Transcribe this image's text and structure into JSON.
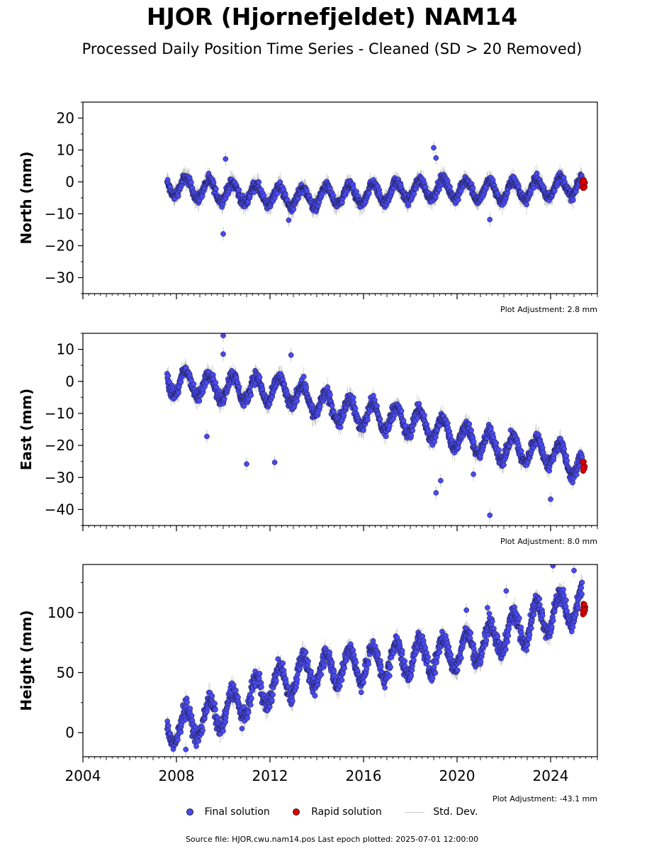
{
  "title": "HJOR (Hjornefjeldet) NAM14",
  "subtitle": "Processed Daily Position Time Series - Cleaned (SD > 20 Removed)",
  "legend": {
    "final_label": "Final solution",
    "rapid_label": "Rapid solution",
    "std_label": "Std. Dev.",
    "final_color": "#4a4af0",
    "rapid_color": "#e00000",
    "std_color": "#c8c8c8"
  },
  "footer": "Source file: HJOR.cwu.nam14.pos  Last epoch plotted: 2025-07-01 12:00:00",
  "chart_data": [
    {
      "type": "scatter",
      "ylabel": "North (mm)",
      "xlim": [
        2004,
        2026
      ],
      "ylim": [
        -35,
        25
      ],
      "yticks": [
        "20",
        "10",
        "0",
        "−10",
        "−20",
        "−30"
      ],
      "ytick_values": [
        20,
        10,
        0,
        -10,
        -20,
        -30
      ],
      "plot_adjustment": "Plot Adjustment: 2.8 mm",
      "data_start": 2007.6,
      "data_end": 2025.5,
      "series": [
        {
          "name": "Final solution",
          "trend": [
            [
              2007.6,
              -1
            ],
            [
              2010,
              -3
            ],
            [
              2013,
              -5
            ],
            [
              2016,
              -4
            ],
            [
              2019,
              -2
            ],
            [
              2022,
              -3
            ],
            [
              2025.3,
              -1
            ]
          ],
          "seasonal_amplitude": 3
        },
        {
          "name": "Rapid solution",
          "x_range": [
            2025.35,
            2025.5
          ],
          "y_range": [
            -2,
            1
          ]
        }
      ],
      "outliers": [
        [
          2010.0,
          -16.3
        ],
        [
          2019.0,
          10.7
        ],
        [
          2019.1,
          7.5
        ],
        [
          2010.1,
          7.2
        ],
        [
          2021.4,
          -11.8
        ],
        [
          2012.8,
          -12
        ]
      ]
    },
    {
      "type": "scatter",
      "ylabel": "East (mm)",
      "xlim": [
        2004,
        2026
      ],
      "ylim": [
        -45,
        15
      ],
      "yticks": [
        "10",
        "0",
        "−10",
        "−20",
        "−30",
        "−40"
      ],
      "ytick_values": [
        10,
        0,
        -10,
        -20,
        -30,
        -40
      ],
      "plot_adjustment": "Plot Adjustment: 8.0 mm",
      "data_start": 2007.6,
      "data_end": 2025.5,
      "series": [
        {
          "name": "Final solution",
          "trend": [
            [
              2007.6,
              0
            ],
            [
              2010,
              -2
            ],
            [
              2012.8,
              -3
            ],
            [
              2014.5,
              -8
            ],
            [
              2016.5,
              -11
            ],
            [
              2018.5,
              -13
            ],
            [
              2020,
              -17
            ],
            [
              2022,
              -21
            ],
            [
              2024,
              -22
            ],
            [
              2025.3,
              -27
            ]
          ],
          "seasonal_amplitude": 4
        },
        {
          "name": "Rapid solution",
          "x_range": [
            2025.35,
            2025.5
          ],
          "y_range": [
            -28,
            -25
          ]
        }
      ],
      "outliers": [
        [
          2010.0,
          14.3
        ],
        [
          2010.0,
          8.5
        ],
        [
          2012.9,
          8.2
        ],
        [
          2011.0,
          -25.8
        ],
        [
          2012.2,
          -25.3
        ],
        [
          2009.3,
          -17.2
        ],
        [
          2019.1,
          -34.8
        ],
        [
          2021.4,
          -41.8
        ],
        [
          2024.0,
          -36.8
        ],
        [
          2019.3,
          -31
        ],
        [
          2020.7,
          -29
        ]
      ]
    },
    {
      "type": "scatter",
      "ylabel": "Height (mm)",
      "xlim": [
        2004,
        2026
      ],
      "ylim": [
        -20,
        140
      ],
      "yticks": [
        "100",
        "50",
        "0"
      ],
      "ytick_values": [
        100,
        50,
        0
      ],
      "xticks": [
        "2004",
        "2008",
        "2012",
        "2016",
        "2020",
        "2024"
      ],
      "xtick_values": [
        2004,
        2008,
        2012,
        2016,
        2020,
        2024
      ],
      "plot_adjustment": "Plot Adjustment: -43.1 mm",
      "data_start": 2007.6,
      "data_end": 2025.5,
      "series": [
        {
          "name": "Final solution",
          "trend": [
            [
              2007.6,
              2
            ],
            [
              2009,
              10
            ],
            [
              2010.5,
              22
            ],
            [
              2012,
              38
            ],
            [
              2013.5,
              50
            ],
            [
              2015,
              55
            ],
            [
              2016.5,
              58
            ],
            [
              2018,
              63
            ],
            [
              2019.5,
              65
            ],
            [
              2020.5,
              70
            ],
            [
              2022,
              82
            ],
            [
              2023.5,
              95
            ],
            [
              2025.3,
              108
            ]
          ],
          "seasonal_amplitude": 14
        },
        {
          "name": "Rapid solution",
          "x_range": [
            2025.35,
            2025.5
          ],
          "y_range": [
            98,
            108
          ]
        }
      ],
      "outliers": [
        [
          2024.1,
          139
        ],
        [
          2025.0,
          135
        ],
        [
          2008.4,
          -14
        ],
        [
          2020.4,
          102
        ],
        [
          2022.1,
          118
        ],
        [
          2021.3,
          104
        ]
      ]
    }
  ]
}
